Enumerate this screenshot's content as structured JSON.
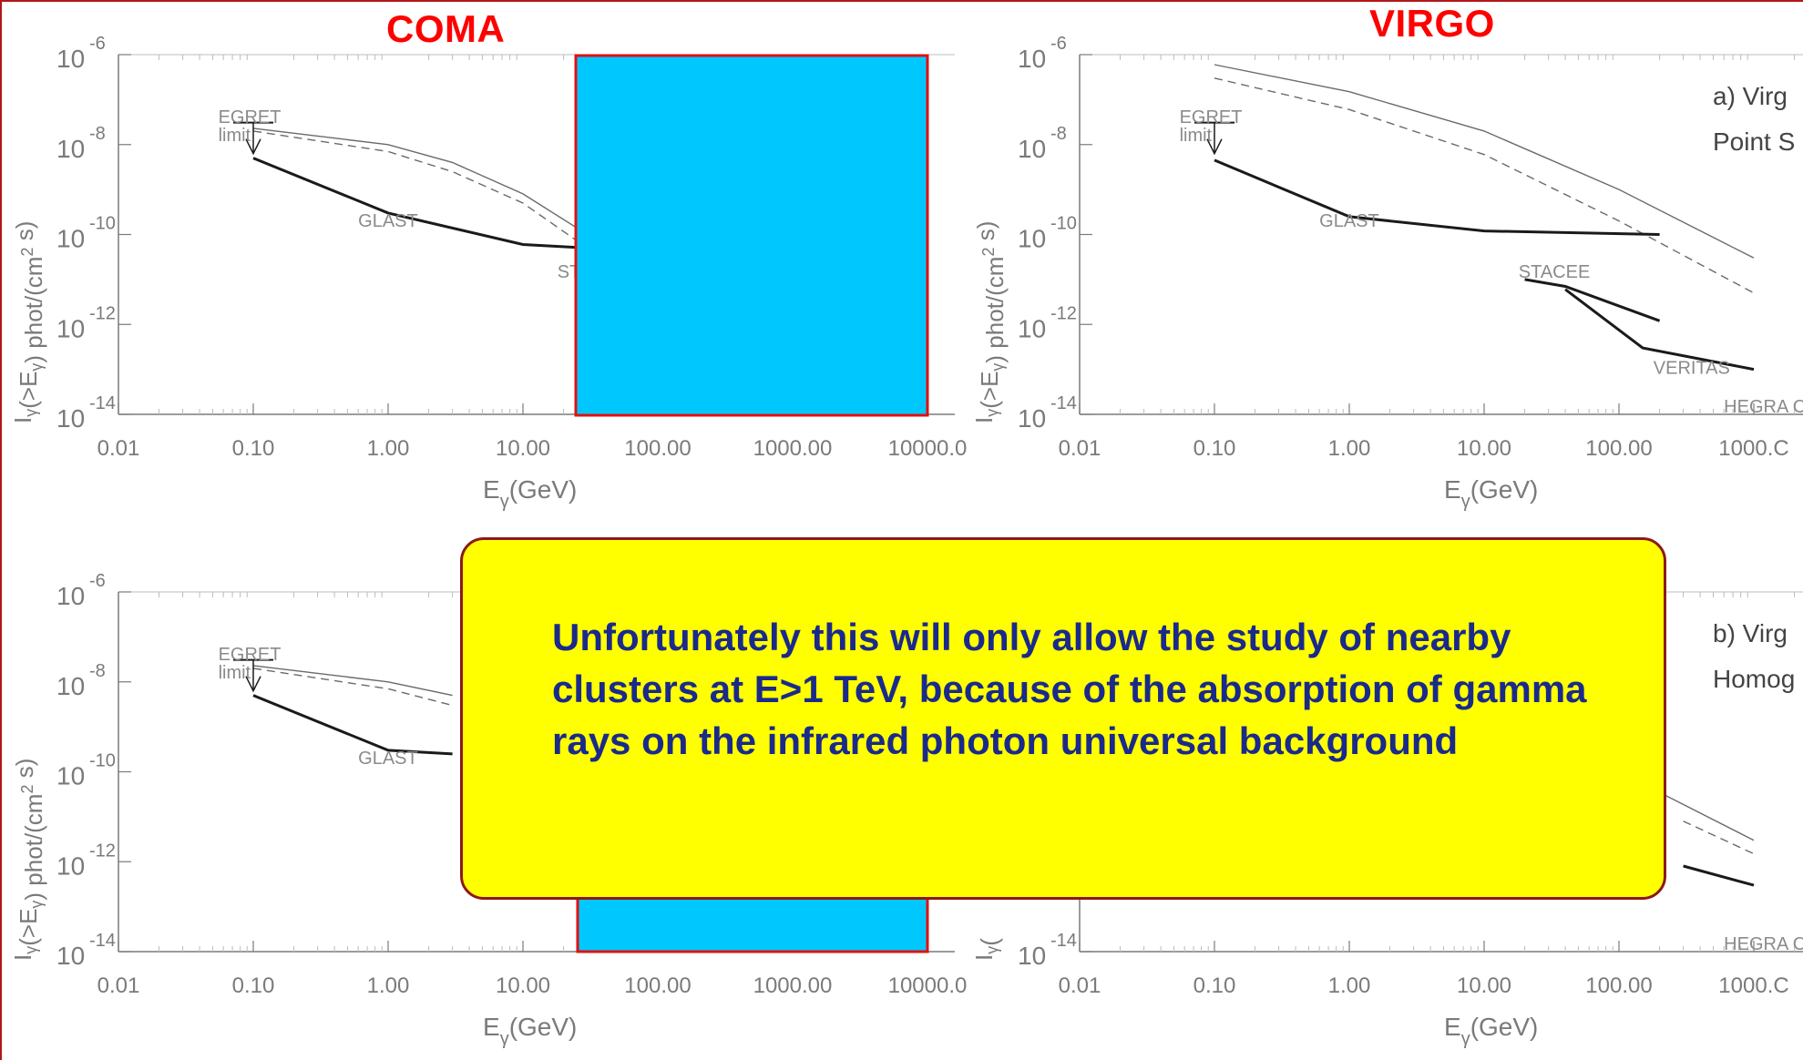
{
  "titles": {
    "left": "COMA",
    "right": "VIRGO"
  },
  "colors": {
    "title": "#ff0000",
    "block": "#00c8ff",
    "block_border": "#e01010",
    "callout_bg": "#ffff00",
    "callout_text": "#1a2a8a",
    "callout_border": "#8b1a1a"
  },
  "callout": {
    "text": "Unfortunately this will only allow the study of nearby clusters at E>1 TeV, because of the absorption of gamma rays on the infrared photon universal background"
  },
  "chart_data": [
    {
      "id": "coma-top",
      "type": "line",
      "cluster": "COMA",
      "xscale": "log",
      "yscale": "log",
      "xlim": [
        0.01,
        10000
      ],
      "ylim": [
        1e-14,
        1e-06
      ],
      "xticks": [
        "0.01",
        "0.10",
        "1.00",
        "10.00",
        "100.00",
        "1000.00",
        "10000.0"
      ],
      "yticks": [
        "10",
        "10",
        "10",
        "10",
        "10"
      ],
      "ytick_exponents": [
        "-6",
        "-8",
        "-10",
        "-12",
        "-14"
      ],
      "ylabel_main": "I",
      "ylabel_sub": "γ",
      "ylabel_paren": "(>E",
      "ylabel_sub2": "γ",
      "ylabel_rest": ") phot/(cm",
      "ylabel_sup": "2",
      "ylabel_end": " s)",
      "xlabel_main": "E",
      "xlabel_sub": "γ",
      "xlabel_rest": "(GeV)",
      "annotations": [
        {
          "text": "EGRET",
          "x": 0.055,
          "y": 3e-08
        },
        {
          "text": "limit",
          "x": 0.055,
          "y": 1.2e-08
        },
        {
          "text": "GLAST",
          "x": 0.6,
          "y": 1.5e-10
        },
        {
          "text": "STACEE",
          "x": 18,
          "y": 1.1e-11
        }
      ],
      "series": [
        {
          "style": "solid-thin",
          "x": [
            0.1,
            1,
            3,
            10,
            30
          ],
          "y": [
            2.3e-08,
            1e-08,
            4e-09,
            8e-10,
            1e-10
          ]
        },
        {
          "style": "dashed",
          "x": [
            0.1,
            1,
            3,
            10,
            30
          ],
          "y": [
            2e-08,
            7e-09,
            2.5e-09,
            5e-10,
            5e-11
          ]
        },
        {
          "style": "thick",
          "label": "GLAST",
          "x": [
            0.1,
            1,
            10,
            30
          ],
          "y": [
            5e-09,
            3e-10,
            6e-11,
            5e-11
          ]
        },
        {
          "style": "upper-limit",
          "label": "EGRET",
          "x": [
            0.1
          ],
          "y": [
            1.6e-08
          ]
        }
      ]
    },
    {
      "id": "virgo-top",
      "type": "line",
      "cluster": "VIRGO",
      "xscale": "log",
      "yscale": "log",
      "xlim": [
        0.01,
        1000
      ],
      "ylim": [
        1e-14,
        1e-06
      ],
      "xticks": [
        "0.01",
        "0.10",
        "1.00",
        "10.00",
        "100.00",
        "1000.C"
      ],
      "yticks": [
        "10",
        "10",
        "10",
        "10",
        "10"
      ],
      "ytick_exponents": [
        "-6",
        "-8",
        "-10",
        "-12",
        "-14"
      ],
      "ylabel_main": "I",
      "ylabel_sub": "γ",
      "ylabel_paren": "(>E",
      "ylabel_sub2": "γ",
      "ylabel_rest": ") phot/(cm",
      "ylabel_sup": "2",
      "ylabel_end": " s)",
      "xlabel_main": "E",
      "xlabel_sub": "γ",
      "xlabel_rest": "(GeV)",
      "panel_label_1": "a) Virg",
      "panel_label_2": "Point S",
      "annotations": [
        {
          "text": "EGRET",
          "x": 0.055,
          "y": 3e-08
        },
        {
          "text": "limit",
          "x": 0.055,
          "y": 1.2e-08
        },
        {
          "text": "GLAST",
          "x": 0.6,
          "y": 1.5e-10
        },
        {
          "text": "STACEE",
          "x": 18,
          "y": 1.1e-11
        },
        {
          "text": "VERITAS",
          "x": 180,
          "y": 8e-14
        },
        {
          "text": "HEGRA CT",
          "x": 600,
          "y": 1.1e-14
        }
      ],
      "series": [
        {
          "style": "solid-thin",
          "x": [
            0.1,
            1,
            10,
            100,
            1000
          ],
          "y": [
            6e-07,
            1.5e-07,
            2e-08,
            1e-09,
            3e-11
          ]
        },
        {
          "style": "dashed",
          "x": [
            0.1,
            1,
            10,
            100,
            1000
          ],
          "y": [
            3e-07,
            6e-08,
            6e-09,
            2e-10,
            5e-12
          ]
        },
        {
          "style": "thick",
          "label": "GLAST",
          "x": [
            0.1,
            1,
            10,
            200
          ],
          "y": [
            4.5e-09,
            2.5e-10,
            1.2e-10,
            1e-10
          ]
        },
        {
          "style": "thick",
          "label": "STACEE",
          "x": [
            20,
            40,
            200
          ],
          "y": [
            1e-11,
            7e-12,
            1.2e-12
          ]
        },
        {
          "style": "thick",
          "label": "VERITAS",
          "x": [
            40,
            150,
            1000
          ],
          "y": [
            6e-12,
            3e-13,
            1e-13
          ]
        },
        {
          "style": "upper-limit",
          "label": "EGRET",
          "x": [
            0.1
          ],
          "y": [
            1.6e-08
          ]
        }
      ]
    },
    {
      "id": "coma-bottom",
      "type": "line",
      "cluster": "COMA",
      "xscale": "log",
      "yscale": "log",
      "xlim": [
        0.01,
        10000
      ],
      "ylim": [
        1e-14,
        1e-06
      ],
      "xticks": [
        "0.01",
        "0.10",
        "1.00",
        "10.00",
        "100.00",
        "1000.00",
        "10000.0"
      ],
      "yticks": [
        "10",
        "10",
        "10",
        "10",
        "10"
      ],
      "ytick_exponents": [
        "-6",
        "-8",
        "-10",
        "-12",
        "-14"
      ],
      "ylabel_main": "I",
      "ylabel_sub": "γ",
      "ylabel_paren": "(>E",
      "ylabel_sub2": "γ",
      "ylabel_rest": ") phot/(cm",
      "ylabel_sup": "2",
      "ylabel_end": " s)",
      "xlabel_main": "E",
      "xlabel_sub": "γ",
      "xlabel_rest": "(GeV)",
      "annotations": [
        {
          "text": "EGRET",
          "x": 0.055,
          "y": 3e-08
        },
        {
          "text": "limit",
          "x": 0.055,
          "y": 1.2e-08
        },
        {
          "text": "GLAST",
          "x": 0.6,
          "y": 1.5e-10
        }
      ],
      "series": [
        {
          "style": "solid-thin",
          "x": [
            0.1,
            1,
            3
          ],
          "y": [
            2.3e-08,
            1e-08,
            5e-09
          ]
        },
        {
          "style": "dashed",
          "x": [
            0.1,
            1,
            3
          ],
          "y": [
            2e-08,
            7e-09,
            3e-09
          ]
        },
        {
          "style": "thick",
          "label": "GLAST",
          "x": [
            0.1,
            1,
            3
          ],
          "y": [
            5e-09,
            3e-10,
            2.5e-10
          ]
        },
        {
          "style": "upper-limit",
          "label": "EGRET",
          "x": [
            0.1
          ],
          "y": [
            1.6e-08
          ]
        }
      ]
    },
    {
      "id": "virgo-bottom",
      "type": "line",
      "cluster": "VIRGO",
      "xscale": "log",
      "yscale": "log",
      "xlim": [
        0.01,
        1000
      ],
      "ylim": [
        1e-14,
        1e-06
      ],
      "xticks": [
        "0.01",
        "0.10",
        "1.00",
        "10.00",
        "100.00",
        "1000.C"
      ],
      "yticks": [
        "10"
      ],
      "ytick_exponents": [
        "-14"
      ],
      "ylabel_main": "I",
      "ylabel_sub": "γ",
      "ylabel_paren": "(",
      "ylabel_sub2": "",
      "ylabel_rest": "",
      "ylabel_sup": "",
      "ylabel_end": "",
      "xlabel_main": "E",
      "xlabel_sub": "γ",
      "xlabel_rest": "(GeV)",
      "panel_label_1": "b) Virg",
      "panel_label_2": "Homog",
      "annotations": [
        {
          "text": "HEGRA CT",
          "x": 600,
          "y": 1.1e-14
        }
      ],
      "series": [
        {
          "style": "solid-thin",
          "x": [
            100,
            1000
          ],
          "y": [
            1e-10,
            3e-12
          ]
        },
        {
          "style": "dashed",
          "x": [
            300,
            1000
          ],
          "y": [
            8e-12,
            1.5e-12
          ]
        },
        {
          "style": "thick",
          "label": "VERITAS",
          "x": [
            300,
            1000
          ],
          "y": [
            8e-13,
            3e-13
          ]
        }
      ]
    }
  ]
}
